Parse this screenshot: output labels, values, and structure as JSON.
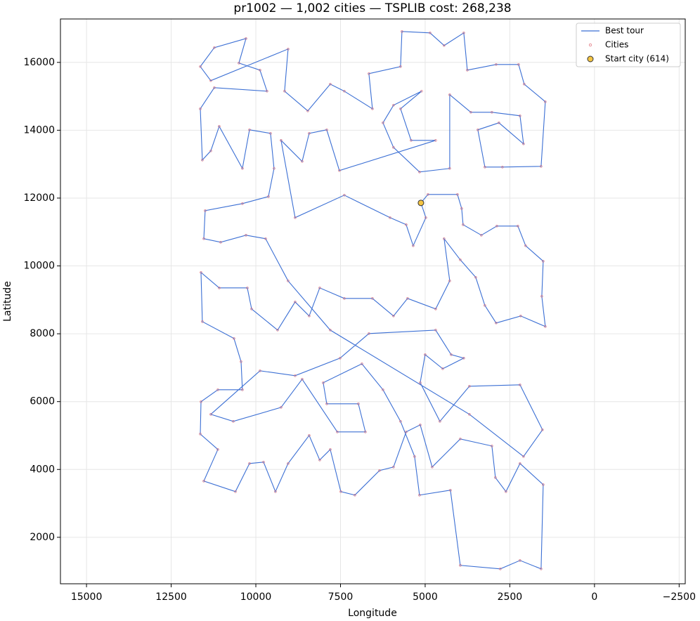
{
  "chart_data": {
    "type": "line",
    "title": "pr1002 — 1,002 cities — TSPLIB cost: 268,238",
    "x_label": "Longitude",
    "y_label": "Latitude",
    "xlim": [
      15770,
      -2680
    ],
    "ylim": [
      630,
      17280
    ],
    "xticks": [
      15000,
      12500,
      10000,
      7500,
      5000,
      2500,
      0,
      {
        "value": -2500,
        "label": "−2500"
      }
    ],
    "yticks": [
      2000,
      4000,
      6000,
      8000,
      10000,
      12000,
      14000,
      16000
    ],
    "grid": true,
    "legend": "upper right",
    "series": [
      {
        "name": "Best tour",
        "type": "line",
        "color": "#3b6fd4",
        "x": [
          5125,
          4918,
          4046,
          3922,
          3880,
          3341,
          2884,
          2262,
          2034,
          1515,
          1556,
          1453,
          2179,
          2905,
          3237,
          3507,
          3963,
          4441,
          4275,
          4690,
          5520,
          5935,
          6557,
          7387,
          8113,
          8425,
          8840,
          9358,
          10126,
          10251,
          11081,
          11620,
          11579,
          10645,
          10437,
          10396,
          11122,
          11620,
          11641,
          11122,
          11537,
          10603,
          10188,
          9773,
          9421,
          9047,
          8425,
          8113,
          7802,
          7491,
          7076,
          6350,
          5935,
          5561,
          5146,
          4793,
          3963,
          3030,
          2926,
          2615,
          2200,
          1515,
          1577,
          2200,
          2781,
          3963,
          4254,
          5167,
          5312,
          5727,
          6246,
          6868,
          8010,
          7906,
          6972,
          6765,
          7595,
          8632,
          9255,
          10666,
          11330,
          9877,
          8840,
          7512,
          6661,
          4690,
          4233,
          3860,
          4482,
          5001,
          5146,
          4565,
          3694,
          2200,
          1536,
          2096,
          3694,
          7802,
          9047,
          9711,
          10292,
          11039,
          11537,
          11496,
          10396,
          9628,
          9462,
          9566,
          10188,
          10396,
          11081,
          11330,
          11579,
          11641,
          11226,
          9670,
          9877,
          10500,
          10292,
          11226,
          11641,
          11330,
          9047,
          9151,
          8466,
          7802,
          7387,
          6557,
          6661,
          5727,
          5686,
          4856,
          4441,
          3860,
          3756,
          2905,
          2241,
          2075,
          1453,
          1577,
          2718,
          3237,
          3445,
          2822,
          2096,
          2200,
          3030,
          3652,
          4275,
          4275,
          5167,
          5935,
          6246,
          5935,
          5105,
          5727,
          5416,
          4690,
          7532,
          7906,
          8425,
          8632,
          9255,
          8840,
          7387,
          6038,
          5561,
          5353,
          4980
        ],
        "y": [
          11858,
          12107,
          12107,
          11692,
          11216,
          10905,
          11175,
          11175,
          10595,
          10139,
          9104,
          8213,
          8524,
          8317,
          8834,
          9663,
          10180,
          10802,
          9559,
          8731,
          9041,
          8524,
          9041,
          9041,
          9352,
          8524,
          8938,
          8109,
          8731,
          9352,
          9352,
          9808,
          8358,
          7861,
          7178,
          6349,
          6349,
          5997,
          5044,
          4589,
          3657,
          3346,
          4175,
          4216,
          3346,
          4175,
          5003,
          4278,
          4589,
          3346,
          3243,
          3967,
          4071,
          5107,
          5314,
          4071,
          4899,
          4692,
          3760,
          3346,
          4175,
          3553,
          1068,
          1317,
          1068,
          1172,
          3388,
          3243,
          4382,
          5417,
          6349,
          7115,
          6556,
          5935,
          5935,
          5107,
          5107,
          6660,
          5831,
          5417,
          5624,
          6908,
          6763,
          7281,
          8006,
          8109,
          7385,
          7281,
          6970,
          7385,
          6556,
          5417,
          6453,
          6494,
          5169,
          4382,
          5624,
          8109,
          9559,
          10802,
          10905,
          10698,
          10802,
          11630,
          11837,
          12044,
          12873,
          13908,
          14012,
          12873,
          14115,
          13391,
          13121,
          14633,
          15254,
          15151,
          15772,
          15979,
          16704,
          16435,
          15876,
          15462,
          16393,
          15151,
          14571,
          15358,
          15151,
          14633,
          15669,
          15876,
          16911,
          16870,
          16497,
          16870,
          15772,
          15938,
          15938,
          15358,
          14840,
          12935,
          12914,
          12914,
          14012,
          14219,
          13598,
          14426,
          14530,
          14530,
          15047,
          12873,
          12769,
          13494,
          14219,
          14737,
          15151,
          14633,
          13701,
          13701,
          12811,
          14012,
          13908,
          13080,
          13701,
          11423,
          12086,
          11423,
          11216,
          10595,
          11423
        ]
      },
      {
        "name": "Cities",
        "type": "scatter",
        "color": "#e0707a"
      },
      {
        "name": "Start city (614)",
        "type": "point",
        "color": "#f5c542",
        "x": [
          5125
        ],
        "y": [
          11858
        ]
      }
    ]
  }
}
